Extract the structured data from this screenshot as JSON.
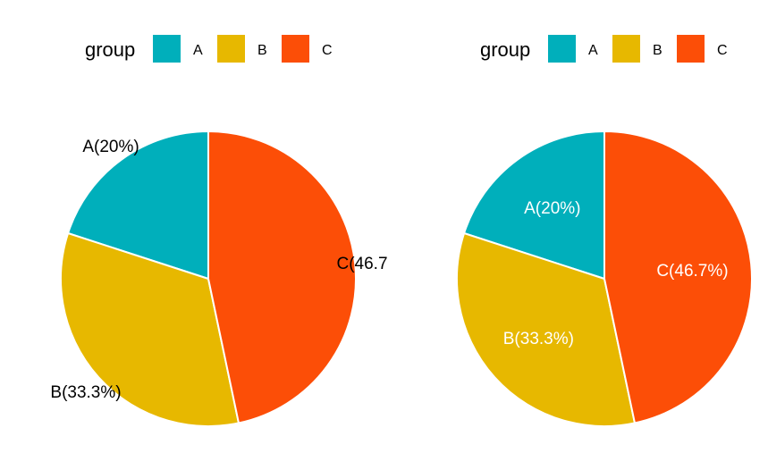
{
  "chart_data": [
    {
      "type": "pie",
      "categories": [
        "A",
        "B",
        "C"
      ],
      "values": [
        20,
        33.3,
        46.7
      ],
      "labels": [
        "A(20%)",
        "B(33.3%)",
        "C(46.7"
      ],
      "label_placement": "outside",
      "label_color": "#000000",
      "legend": {
        "title": "group",
        "entries": [
          "A",
          "B",
          "C"
        ],
        "position": "top"
      },
      "colors": [
        "#00AFBB",
        "#E7B800",
        "#FC4E07"
      ]
    },
    {
      "type": "pie",
      "categories": [
        "A",
        "B",
        "C"
      ],
      "values": [
        20,
        33.3,
        46.7
      ],
      "labels": [
        "A(20%)",
        "B(33.3%)",
        "C(46.7%)"
      ],
      "label_placement": "inside",
      "label_color": "#ffffff",
      "legend": {
        "title": "group",
        "entries": [
          "A",
          "B",
          "C"
        ],
        "position": "top"
      },
      "colors": [
        "#00AFBB",
        "#E7B800",
        "#FC4E07"
      ]
    }
  ]
}
